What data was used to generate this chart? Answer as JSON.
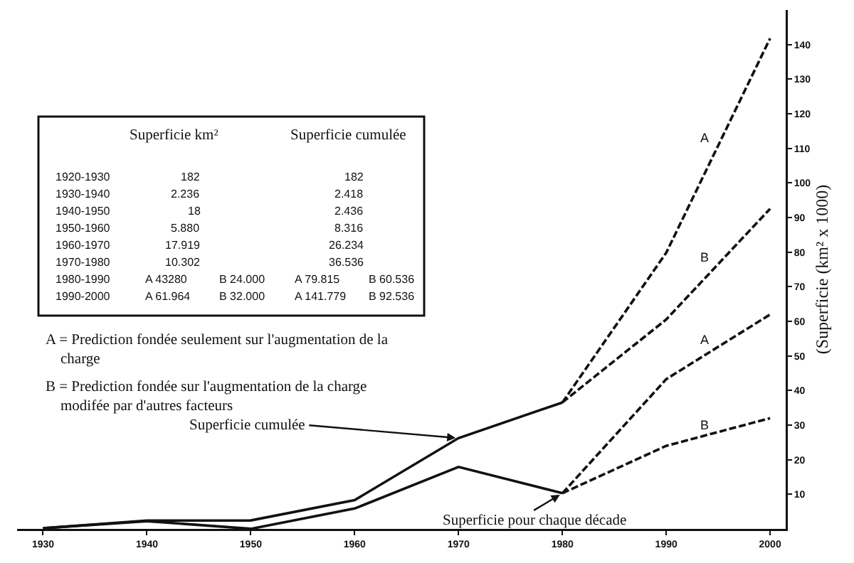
{
  "chart_data": {
    "type": "line",
    "ylabel": "(Superficie (km² x 1000)",
    "xlim": [
      1927.5,
      2001.5
    ],
    "xticks": [
      1930,
      1940,
      1950,
      1960,
      1970,
      1980,
      1990,
      2000
    ],
    "ylim": [
      0,
      150
    ],
    "yticks": [
      10,
      20,
      30,
      40,
      50,
      60,
      70,
      80,
      90,
      100,
      110,
      120,
      130,
      140
    ],
    "legend": false,
    "grid": false,
    "series": [
      {
        "color": "#111111",
        "line_style": "solid",
        "x": [
          1930,
          1940,
          1950,
          1960,
          1970,
          1980
        ],
        "values": [
          0.182,
          2.418,
          2.436,
          8.316,
          26.234,
          36.536
        ]
      },
      {
        "color": "#111111",
        "line_style": "solid",
        "x": [
          1930,
          1940,
          1950,
          1960,
          1970,
          1980
        ],
        "values": [
          0.182,
          2.236,
          0.018,
          5.88,
          17.919,
          10.302
        ]
      },
      {
        "name": "A",
        "color": "#111111",
        "line_style": "dashed",
        "x": [
          1980,
          1990,
          2000
        ],
        "values": [
          36.536,
          79.815,
          141.779
        ]
      },
      {
        "name": "B",
        "color": "#111111",
        "line_style": "dashed",
        "x": [
          1980,
          1990,
          2000
        ],
        "values": [
          36.536,
          60.536,
          92.536
        ]
      },
      {
        "name": "A",
        "color": "#111111",
        "line_style": "dashed",
        "x": [
          1980,
          1990,
          2000
        ],
        "values": [
          10.302,
          43.28,
          61.964
        ]
      },
      {
        "name": "B",
        "color": "#111111",
        "line_style": "dashed",
        "x": [
          1980,
          1990,
          2000
        ],
        "values": [
          10.302,
          24,
          32
        ]
      }
    ],
    "annotations": [
      "Superficie km²",
      "Superficie cumulée",
      "1920-1930 182 182",
      "1930-1940 2.236 2.418",
      "1940-1950 18 2.436",
      "1950-1960 5.880 8.316",
      "1960-1970 17.919 26.234",
      "1970-1980 10.302 36.536",
      "1980-1990 A 43280 B 24.000 A 79.815 B 60.536",
      "1990-2000 A 61.964 B 32.000 A 141.779 B 92.536",
      "A = Prediction fondée seulement sur l'augmentation de la charge",
      "B = Prediction fondée sur l'augmentation de la charge modifée par d'autres facteurs",
      {
        "text": "Superficie cumulée",
        "x": 1970,
        "y": 26.234
      },
      {
        "text": "Superficie pour chaque décade",
        "x": 1980,
        "y": 10.302
      }
    ]
  }
}
